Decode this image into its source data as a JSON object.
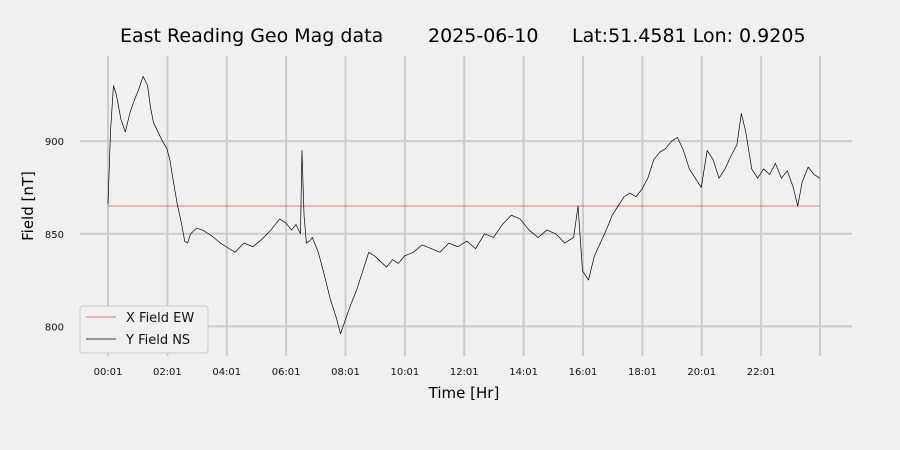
{
  "chart_data": {
    "type": "line",
    "title": {
      "name": "East Reading Geo Mag data",
      "date": "2025-06-10",
      "location": "Lat:51.4581  Lon: 0.9205"
    },
    "xlabel": "Time  [Hr]",
    "ylabel": "Field  [nT]",
    "x_unit": "hours",
    "xlim": [
      0.0167,
      24
    ],
    "ylim": [
      784,
      946
    ],
    "x_ticks": [
      0.0167,
      2.0167,
      4.0167,
      6.0167,
      8.0167,
      10.0167,
      12.0167,
      14.0167,
      16.0167,
      18.0167,
      20.0167,
      22.0167
    ],
    "x_tick_labels": [
      "00:01",
      "02:01",
      "04:01",
      "06:01",
      "08:01",
      "10:01",
      "12:01",
      "14:01",
      "16:01",
      "18:01",
      "20:01",
      "22:01"
    ],
    "x_grid_lines": [
      0.0167,
      2.0167,
      4.0167,
      6.0167,
      8.0167,
      10.0167,
      12.0167,
      14.0167,
      16.0167,
      18.0167,
      20.0167,
      22.0167,
      24
    ],
    "y_ticks": [
      800,
      850,
      900
    ],
    "y_tick_labels": [
      "800",
      "850",
      "900"
    ],
    "grid": true,
    "legend_position": "lower-left",
    "series": [
      {
        "name": "X Field EW",
        "color": "#e05050",
        "x": [
          0.0167,
          24
        ],
        "y": [
          865,
          865
        ]
      },
      {
        "name": "Y Field NS",
        "color": "#000000",
        "x": [
          0.0167,
          0.1,
          0.2,
          0.3,
          0.45,
          0.6,
          0.75,
          0.9,
          1.05,
          1.2,
          1.35,
          1.45,
          1.55,
          1.7,
          1.85,
          2.0,
          2.1,
          2.2,
          2.35,
          2.5,
          2.6,
          2.7,
          2.8,
          3.0,
          3.2,
          3.5,
          3.8,
          4.0,
          4.3,
          4.6,
          4.9,
          5.2,
          5.5,
          5.8,
          6.0,
          6.2,
          6.35,
          6.5,
          6.55,
          6.62,
          6.7,
          6.8,
          6.9,
          7.1,
          7.3,
          7.5,
          7.7,
          7.85,
          8.0,
          8.2,
          8.4,
          8.6,
          8.8,
          9.0,
          9.2,
          9.4,
          9.6,
          9.8,
          10.0,
          10.3,
          10.6,
          10.9,
          11.2,
          11.5,
          11.8,
          12.1,
          12.4,
          12.7,
          13.0,
          13.3,
          13.6,
          13.9,
          14.2,
          14.5,
          14.8,
          15.1,
          15.4,
          15.7,
          15.85,
          16.0,
          16.2,
          16.4,
          16.6,
          16.8,
          17.0,
          17.2,
          17.4,
          17.6,
          17.8,
          18.0,
          18.2,
          18.4,
          18.6,
          18.8,
          19.0,
          19.2,
          19.4,
          19.6,
          19.8,
          20.0,
          20.2,
          20.4,
          20.6,
          20.8,
          21.0,
          21.2,
          21.35,
          21.5,
          21.7,
          21.9,
          22.1,
          22.3,
          22.5,
          22.7,
          22.9,
          23.1,
          23.25,
          23.4,
          23.6,
          23.8,
          24.0
        ],
        "y": [
          866,
          905,
          930,
          925,
          912,
          905,
          915,
          922,
          928,
          935,
          930,
          918,
          910,
          905,
          900,
          896,
          890,
          880,
          866,
          855,
          846,
          845,
          850,
          853,
          852,
          849,
          845,
          843,
          840,
          845,
          843,
          847,
          852,
          858,
          856,
          852,
          855,
          850,
          895,
          860,
          845,
          846,
          848,
          840,
          828,
          815,
          805,
          796,
          803,
          812,
          820,
          830,
          840,
          838,
          835,
          832,
          836,
          834,
          838,
          840,
          844,
          842,
          840,
          845,
          843,
          846,
          842,
          850,
          848,
          855,
          860,
          858,
          852,
          848,
          852,
          850,
          845,
          848,
          865,
          830,
          825,
          838,
          845,
          852,
          860,
          865,
          870,
          872,
          870,
          874,
          880,
          890,
          894,
          896,
          900,
          902,
          895,
          885,
          880,
          875,
          895,
          890,
          880,
          885,
          892,
          898,
          915,
          905,
          885,
          880,
          885,
          882,
          888,
          880,
          884,
          875,
          865,
          878,
          886,
          882,
          880
        ]
      }
    ]
  }
}
